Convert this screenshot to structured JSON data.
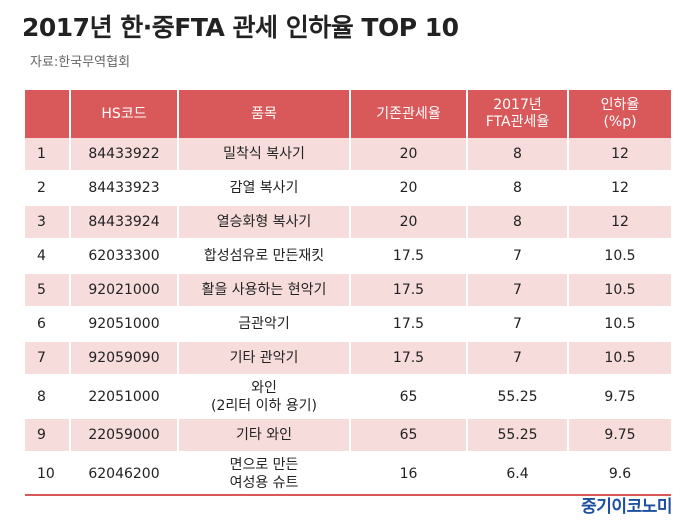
{
  "title": "2017년 한·중FTA 관세 인하율 TOP 10",
  "source": "자료:한국무역협회",
  "table": {
    "headers": [
      "",
      "HS코드",
      "품목",
      "기존관세율",
      "2017년\nFTA관세율",
      "인하율\n(%p)"
    ],
    "rows": [
      {
        "no": "1",
        "hs": "84433922",
        "item": "밀착식 복사기",
        "base": "20",
        "fta": "8",
        "cut": "12"
      },
      {
        "no": "2",
        "hs": "84433923",
        "item": "감열 복사기",
        "base": "20",
        "fta": "8",
        "cut": "12"
      },
      {
        "no": "3",
        "hs": "84433924",
        "item": "열승화형 복사기",
        "base": "20",
        "fta": "8",
        "cut": "12"
      },
      {
        "no": "4",
        "hs": "62033300",
        "item": "합성섬유로 만든재킷",
        "base": "17.5",
        "fta": "7",
        "cut": "10.5"
      },
      {
        "no": "5",
        "hs": "92021000",
        "item": "활을 사용하는 현악기",
        "base": "17.5",
        "fta": "7",
        "cut": "10.5"
      },
      {
        "no": "6",
        "hs": "92051000",
        "item": "금관악기",
        "base": "17.5",
        "fta": "7",
        "cut": "10.5"
      },
      {
        "no": "7",
        "hs": "92059090",
        "item": "기타 관악기",
        "base": "17.5",
        "fta": "7",
        "cut": "10.5"
      },
      {
        "no": "8",
        "hs": "22051000",
        "item": "와인\n(2리터 이하 용기)",
        "base": "65",
        "fta": "55.25",
        "cut": "9.75"
      },
      {
        "no": "9",
        "hs": "22059000",
        "item": "기타 와인",
        "base": "65",
        "fta": "55.25",
        "cut": "9.75"
      },
      {
        "no": "10",
        "hs": "62046200",
        "item": "면으로 만든\n여성용 슈트",
        "base": "16",
        "fta": "6.4",
        "cut": "9.6"
      }
    ]
  },
  "brand": "중기이코노미",
  "colors": {
    "header_bg": "#d9585a",
    "row_shade": "#f7dcdc",
    "brand": "#1d4fa0"
  }
}
